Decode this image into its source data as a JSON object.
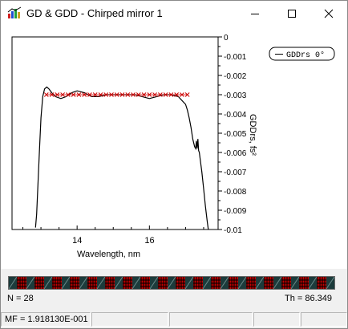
{
  "window": {
    "title": "GD & GDD - Chirped mirror 1",
    "icons": {
      "app": "gd-gdd-chart-icon",
      "minimize": "minimize-icon",
      "maximize": "maximize-icon",
      "close": "close-icon"
    }
  },
  "chart_data": {
    "type": "line",
    "xlabel": "Wavelength, nm",
    "ylabel": "GDDrs, fs²",
    "xlim": [
      12.2,
      17.9
    ],
    "ylim": [
      -0.01,
      0
    ],
    "x_ticks": [
      "14",
      "16"
    ],
    "y_ticks": [
      "0",
      "-0.001",
      "-0.002",
      "-0.003",
      "-0.004",
      "-0.005",
      "-0.006",
      "-0.007",
      "-0.008",
      "-0.009",
      "-0.01"
    ],
    "legend": {
      "label": "GDDrs 0°",
      "placement": "top-right"
    },
    "grid": false,
    "series": [
      {
        "name": "GDDrs 0°",
        "color": "#000000",
        "x": [
          12.85,
          12.88,
          12.92,
          12.96,
          13.0,
          13.05,
          13.1,
          13.16,
          13.22,
          13.3,
          13.4,
          13.55,
          13.7,
          13.85,
          14.0,
          14.2,
          14.4,
          14.6,
          14.8,
          15.0,
          15.2,
          15.4,
          15.6,
          15.8,
          16.0,
          16.2,
          16.4,
          16.6,
          16.8,
          17.0,
          17.05,
          17.1,
          17.15,
          17.2,
          17.25,
          17.28,
          17.3,
          17.32,
          17.34,
          17.36,
          17.38,
          17.4,
          17.45,
          17.5,
          17.55,
          17.6,
          17.63
        ],
        "y": [
          -0.0099,
          -0.0092,
          -0.0075,
          -0.0058,
          -0.0042,
          -0.0031,
          -0.0027,
          -0.0026,
          -0.0027,
          -0.0029,
          -0.0031,
          -0.0032,
          -0.0031,
          -0.0029,
          -0.0028,
          -0.0029,
          -0.0031,
          -0.0031,
          -0.003,
          -0.003,
          -0.003,
          -0.003,
          -0.003,
          -0.0031,
          -0.0032,
          -0.0031,
          -0.003,
          -0.003,
          -0.0031,
          -0.0035,
          -0.0038,
          -0.0042,
          -0.0047,
          -0.0053,
          -0.0057,
          -0.0058,
          -0.0054,
          -0.0058,
          -0.0053,
          -0.0059,
          -0.006,
          -0.0063,
          -0.007,
          -0.0079,
          -0.0088,
          -0.0096,
          -0.01
        ]
      },
      {
        "name": "",
        "color": "#cc0000",
        "marker": "x",
        "x": [
          13.15,
          13.3,
          13.45,
          13.6,
          13.75,
          13.9,
          14.05,
          14.2,
          14.35,
          14.5,
          14.65,
          14.8,
          14.95,
          15.1,
          15.25,
          15.4,
          15.55,
          15.7,
          15.85,
          16.0,
          16.15,
          16.3,
          16.45,
          16.6,
          16.75,
          16.9,
          17.05
        ],
        "y": [
          -0.003,
          -0.003,
          -0.003,
          -0.003,
          -0.003,
          -0.003,
          -0.003,
          -0.003,
          -0.003,
          -0.003,
          -0.003,
          -0.003,
          -0.003,
          -0.003,
          -0.003,
          -0.003,
          -0.003,
          -0.003,
          -0.003,
          -0.003,
          -0.003,
          -0.003,
          -0.003,
          -0.003,
          -0.003,
          -0.003,
          -0.003
        ]
      }
    ]
  },
  "stats": {
    "n_label": "N = 28",
    "th_label": "Th = 86.349"
  },
  "progress": {
    "fill_fraction": 1.0,
    "pattern_colors": [
      "#c00000",
      "#1a3a3a",
      "#000000"
    ]
  },
  "statusbar": {
    "mf_label": "MF =  1.918130E-001"
  }
}
